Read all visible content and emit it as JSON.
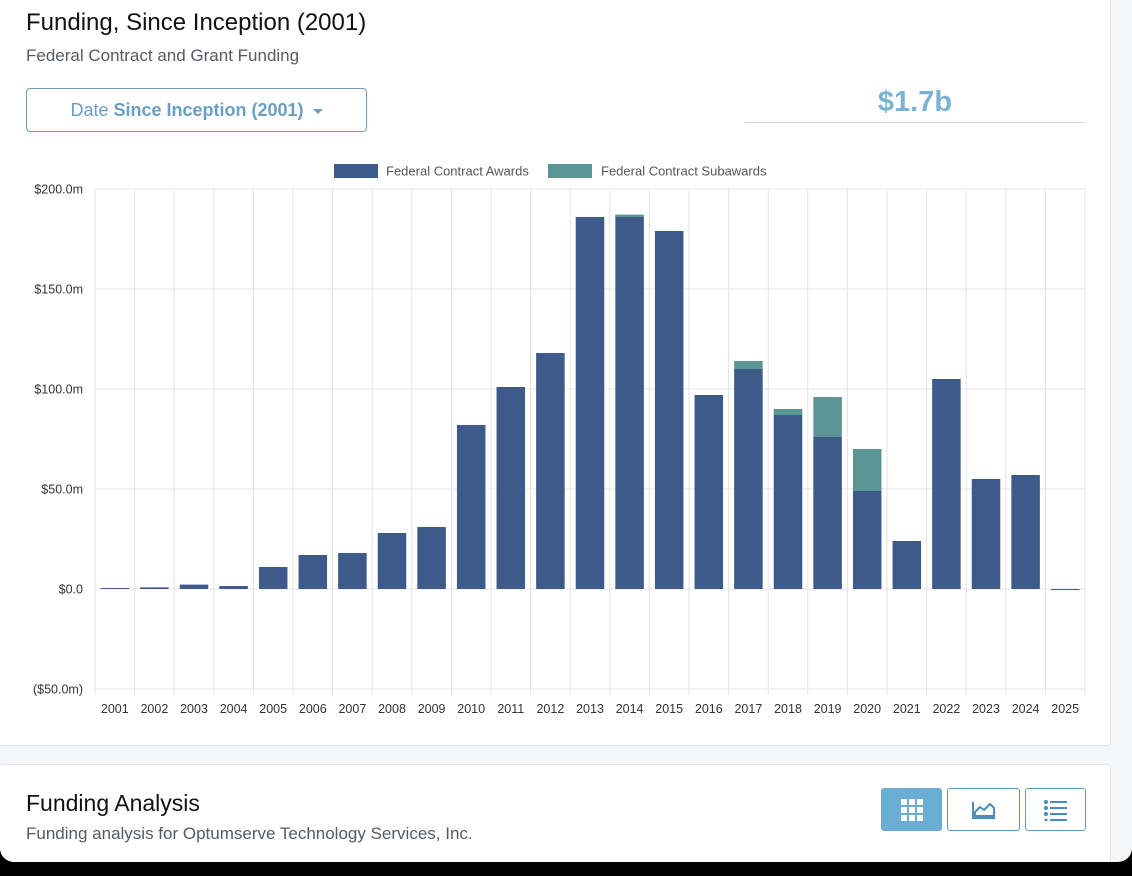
{
  "header": {
    "title": "Funding, Since Inception (2001)",
    "subtitle": "Federal Contract and Grant Funding"
  },
  "date_filter": {
    "prefix": "Date",
    "value": "Since Inception (2001)"
  },
  "total": "$1.7b",
  "colors": {
    "awards": "#3d5a8a",
    "subawards": "#5b9594",
    "accent": "#6a9fc4"
  },
  "chart_data": {
    "type": "bar",
    "stacked": true,
    "categories": [
      "2001",
      "2002",
      "2003",
      "2004",
      "2005",
      "2006",
      "2007",
      "2008",
      "2009",
      "2010",
      "2011",
      "2012",
      "2013",
      "2014",
      "2015",
      "2016",
      "2017",
      "2018",
      "2019",
      "2020",
      "2021",
      "2022",
      "2023",
      "2024",
      "2025"
    ],
    "series": [
      {
        "name": "Federal Contract Awards",
        "values": [
          0.5,
          0.8,
          2.2,
          1.5,
          11,
          17,
          18,
          28,
          31,
          82,
          101,
          118,
          186,
          186,
          179,
          97,
          110,
          87,
          76,
          49,
          24,
          105,
          55,
          57,
          -0.3
        ]
      },
      {
        "name": "Federal Contract Subawards",
        "values": [
          0,
          0,
          0,
          0,
          0,
          0,
          0,
          0,
          0,
          0,
          0,
          0,
          0,
          1.2,
          0,
          0,
          4,
          3,
          20,
          21,
          0,
          0,
          0,
          0,
          0
        ]
      }
    ],
    "y_ticks": [
      "$200.0m",
      "$150.0m",
      "$100.0m",
      "$50.0m",
      "$0.0",
      "($50.0m)"
    ],
    "ylim": [
      -50,
      200
    ],
    "xlabel": "",
    "ylabel": "",
    "legend_position": "top-center",
    "grid": true
  },
  "analysis": {
    "title": "Funding Analysis",
    "subtitle": "Funding analysis for Optumserve Technology Services, Inc."
  }
}
